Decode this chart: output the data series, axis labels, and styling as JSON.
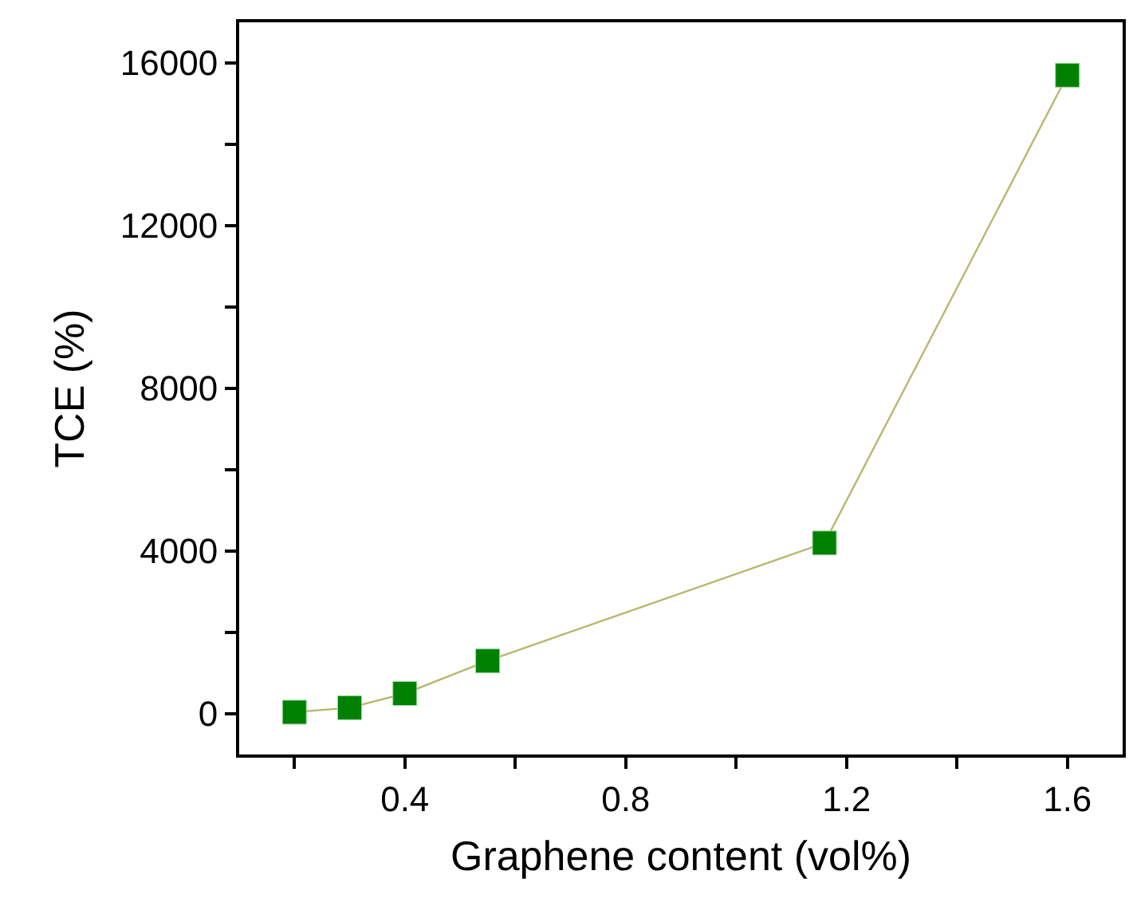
{
  "chart_data": {
    "type": "line",
    "xlabel": "Graphene content (vol%)",
    "ylabel": "TCE (%)",
    "x": [
      0.2,
      0.3,
      0.4,
      0.55,
      1.16,
      1.6
    ],
    "series": [
      {
        "color": "#008000",
        "values": [
          40,
          150,
          500,
          1300,
          4200,
          15700
        ]
      }
    ],
    "marker": "square",
    "line_style": "solid",
    "grid": false,
    "legend": false,
    "xlim": [
      0.1,
      1.7
    ],
    "ylim": [
      -1000,
      17000
    ],
    "xticks": [
      {
        "value": 0.2,
        "label": null
      },
      0.4,
      {
        "value": 0.6,
        "label": null
      },
      0.8,
      {
        "value": 1.0,
        "label": null
      },
      1.2,
      {
        "value": 1.4,
        "label": null
      },
      1.6
    ],
    "yticks": [
      0,
      {
        "value": 2000,
        "label": null
      },
      4000,
      {
        "value": 6000,
        "label": null
      },
      8000,
      {
        "value": 10000,
        "label": null
      },
      12000,
      {
        "value": 14000,
        "label": null
      },
      16000
    ]
  }
}
